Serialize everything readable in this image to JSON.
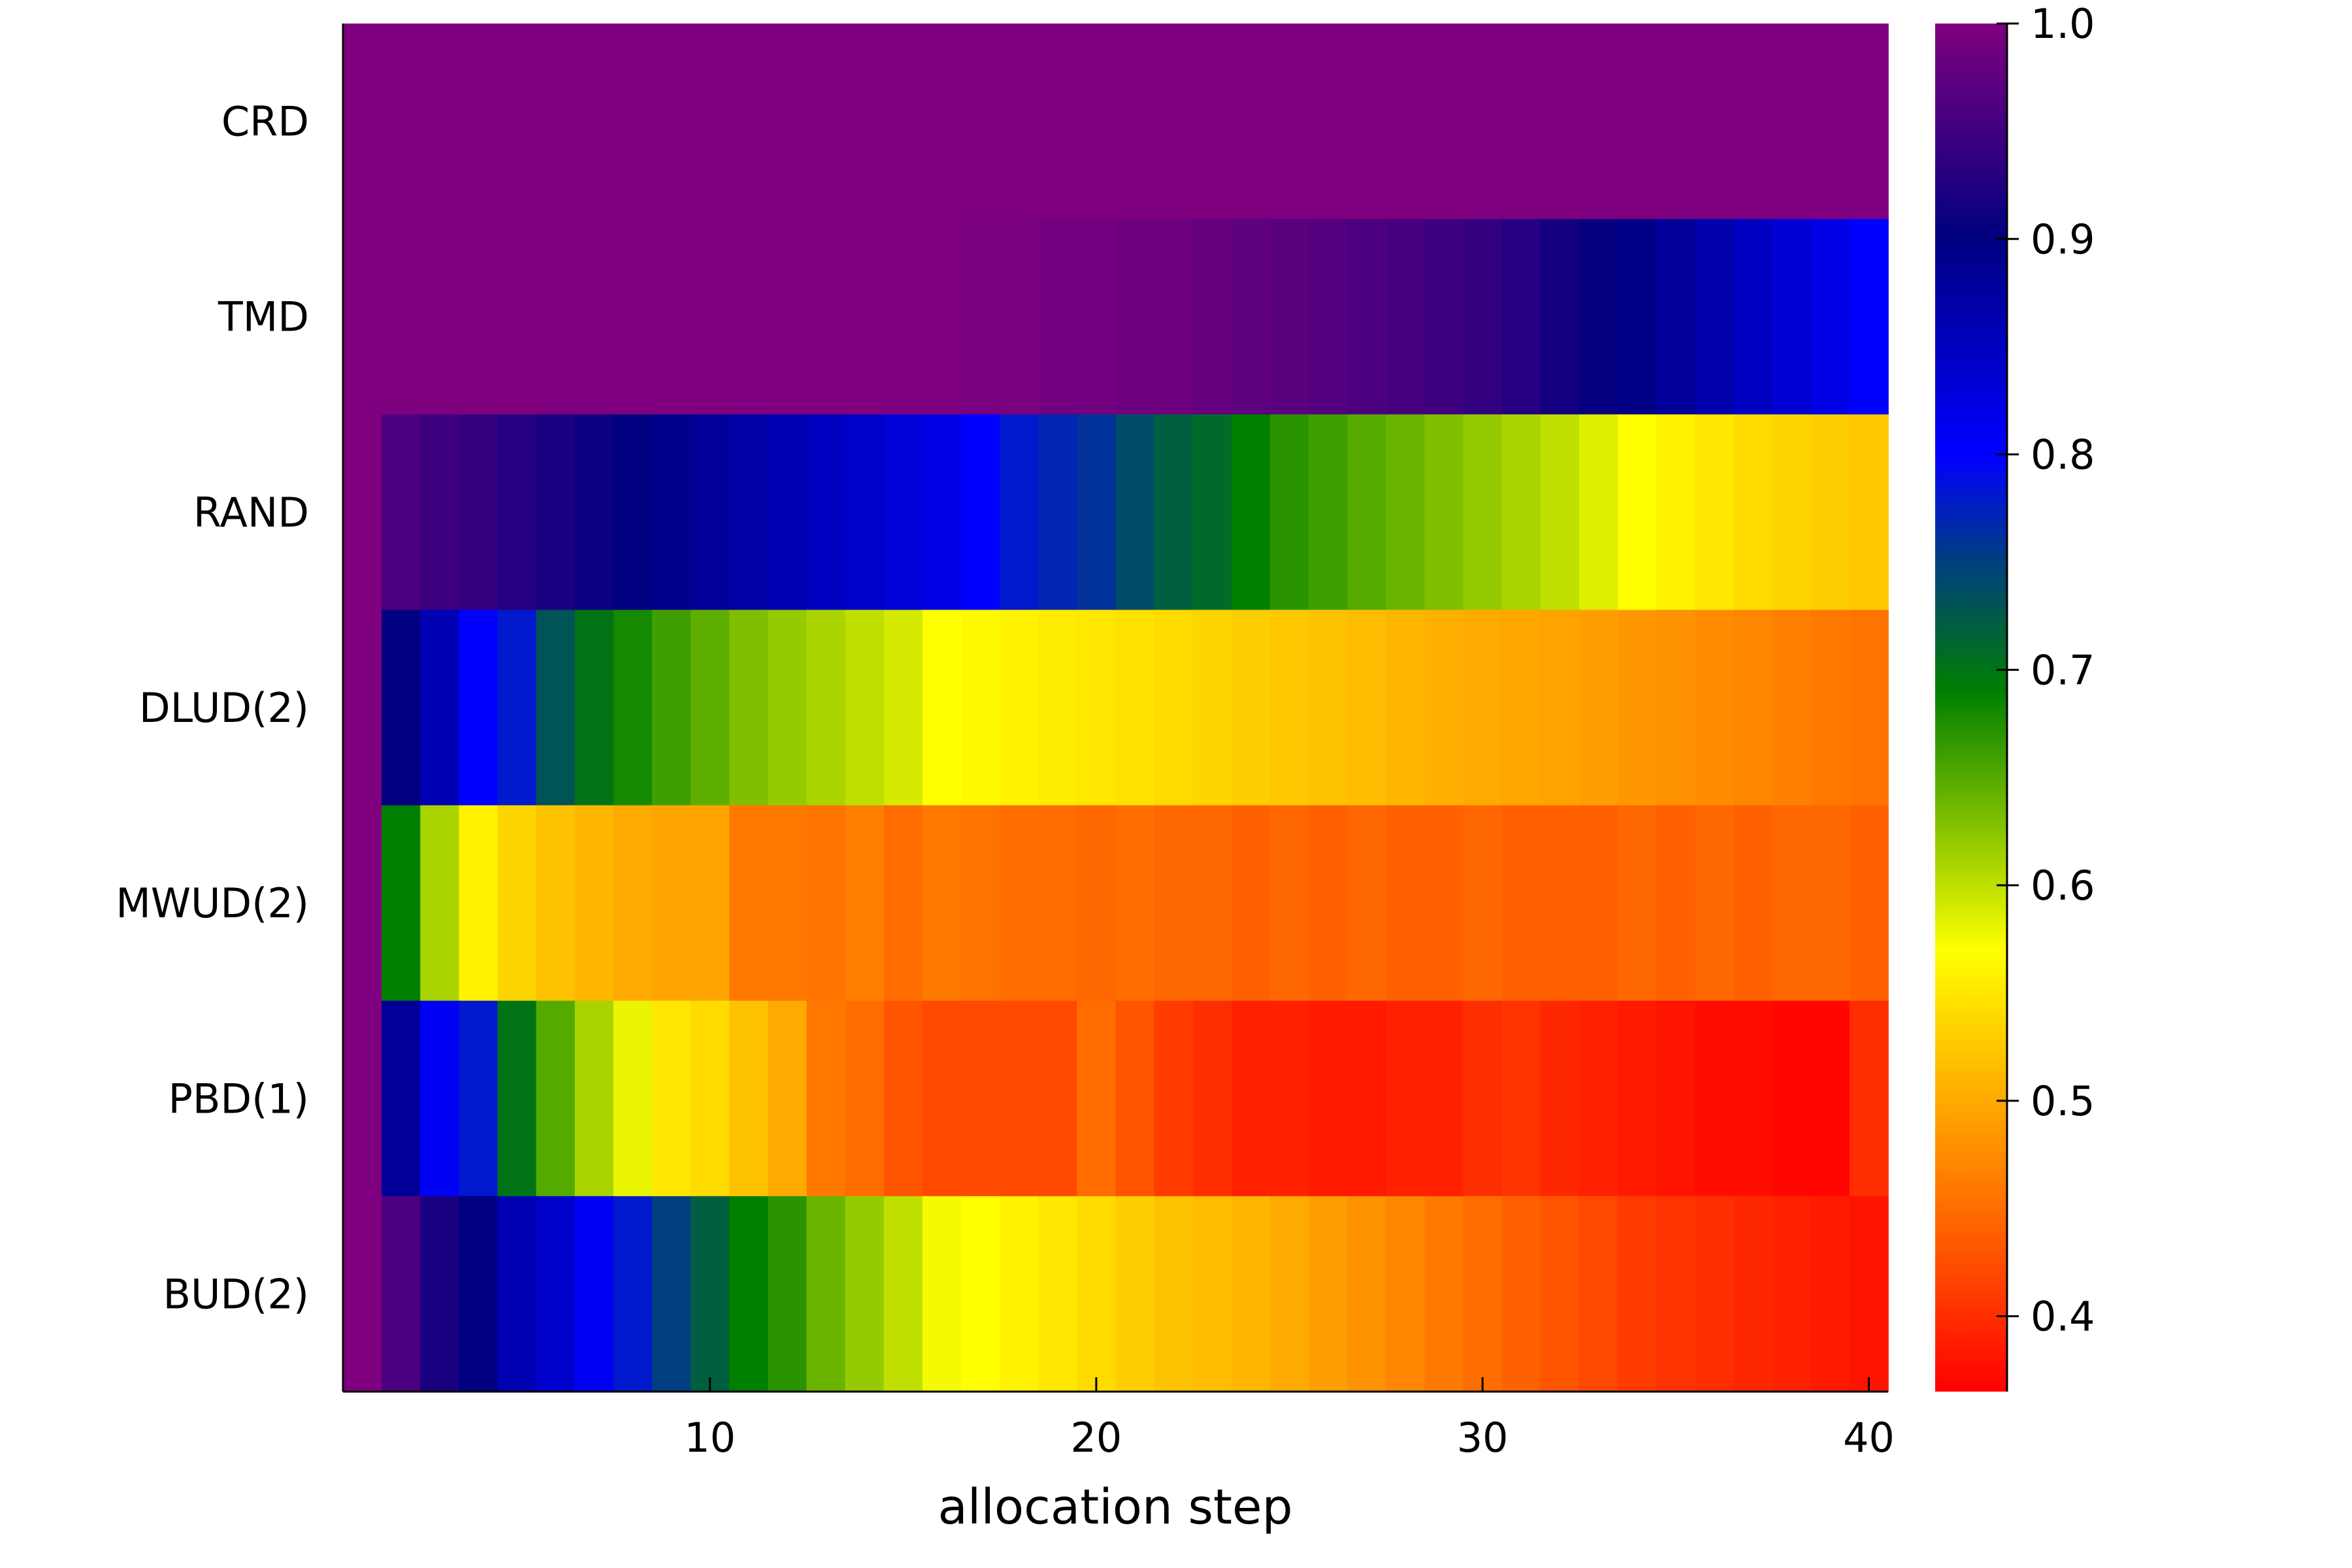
{
  "chart_data": {
    "type": "heatmap",
    "title": "",
    "xlabel": "allocation step",
    "ylabel": "",
    "xlim": [
      0.5,
      40.5
    ],
    "x_ticks": [
      10,
      20,
      30,
      40
    ],
    "rows": [
      "CRD",
      "TMD",
      "RAND",
      "DLUD(2)",
      "MWUD(2)",
      "PBD(1)",
      "BUD(2)"
    ],
    "colorbar": {
      "range": [
        0.365,
        1.0
      ],
      "ticks": [
        "1.0",
        "0.9",
        "0.8",
        "0.7",
        "0.6",
        "0.5",
        "0.4"
      ],
      "stops": [
        {
          "v": 0.365,
          "c": "#ff0000"
        },
        {
          "v": 0.43,
          "c": "#ff5500"
        },
        {
          "v": 0.5,
          "c": "#ffaa00"
        },
        {
          "v": 0.57,
          "c": "#ffff00"
        },
        {
          "v": 0.63,
          "c": "#7fbf00"
        },
        {
          "v": 0.69,
          "c": "#007f00"
        },
        {
          "v": 0.75,
          "c": "#003f7f"
        },
        {
          "v": 0.8,
          "c": "#0000ff"
        },
        {
          "v": 0.9,
          "c": "#000080"
        },
        {
          "v": 1.0,
          "c": "#7f007f"
        }
      ]
    },
    "values": [
      [
        1.0,
        1.0,
        1.0,
        1.0,
        1.0,
        1.0,
        1.0,
        1.0,
        1.0,
        1.0,
        1.0,
        1.0,
        1.0,
        1.0,
        1.0,
        1.0,
        1.0,
        1.0,
        1.0,
        1.0,
        1.0,
        1.0,
        1.0,
        1.0,
        1.0,
        1.0,
        1.0,
        1.0,
        1.0,
        1.0,
        1.0,
        1.0,
        1.0,
        1.0,
        1.0,
        1.0,
        1.0,
        1.0,
        1.0,
        1.0
      ],
      [
        1.0,
        1.0,
        1.0,
        1.0,
        1.0,
        1.0,
        1.0,
        1.0,
        1.0,
        1.0,
        1.0,
        1.0,
        1.0,
        1.0,
        1.0,
        1.0,
        0.995,
        0.995,
        0.99,
        0.99,
        0.985,
        0.985,
        0.98,
        0.975,
        0.97,
        0.965,
        0.96,
        0.955,
        0.95,
        0.94,
        0.93,
        0.915,
        0.905,
        0.895,
        0.88,
        0.865,
        0.85,
        0.835,
        0.82,
        0.8
      ],
      [
        1.0,
        0.96,
        0.95,
        0.94,
        0.93,
        0.92,
        0.91,
        0.9,
        0.89,
        0.88,
        0.87,
        0.86,
        0.85,
        0.84,
        0.83,
        0.82,
        0.8,
        0.78,
        0.77,
        0.76,
        0.74,
        0.72,
        0.71,
        0.69,
        0.67,
        0.66,
        0.65,
        0.64,
        0.63,
        0.62,
        0.61,
        0.6,
        0.585,
        0.57,
        0.56,
        0.55,
        0.54,
        0.535,
        0.53,
        0.525
      ],
      [
        1.0,
        0.9,
        0.86,
        0.8,
        0.78,
        0.73,
        0.7,
        0.68,
        0.66,
        0.645,
        0.63,
        0.62,
        0.61,
        0.6,
        0.59,
        0.57,
        0.565,
        0.56,
        0.555,
        0.55,
        0.545,
        0.54,
        0.535,
        0.53,
        0.525,
        0.52,
        0.515,
        0.51,
        0.505,
        0.5,
        0.497,
        0.494,
        0.49,
        0.485,
        0.48,
        0.475,
        0.47,
        0.465,
        0.46,
        0.455
      ],
      [
        1.0,
        0.69,
        0.61,
        0.56,
        0.535,
        0.52,
        0.51,
        0.5,
        0.495,
        0.495,
        0.46,
        0.46,
        0.455,
        0.465,
        0.45,
        0.46,
        0.455,
        0.45,
        0.45,
        0.445,
        0.45,
        0.445,
        0.445,
        0.44,
        0.445,
        0.44,
        0.445,
        0.44,
        0.44,
        0.445,
        0.44,
        0.44,
        0.44,
        0.445,
        0.44,
        0.445,
        0.44,
        0.445,
        0.445,
        0.44
      ],
      [
        1.0,
        0.88,
        0.81,
        0.78,
        0.7,
        0.65,
        0.61,
        0.58,
        0.55,
        0.54,
        0.52,
        0.5,
        0.46,
        0.45,
        0.43,
        0.42,
        0.42,
        0.42,
        0.42,
        0.45,
        0.43,
        0.41,
        0.4,
        0.39,
        0.39,
        0.385,
        0.385,
        0.39,
        0.39,
        0.4,
        0.405,
        0.395,
        0.39,
        0.385,
        0.38,
        0.375,
        0.375,
        0.37,
        0.37,
        0.4
      ],
      [
        1.0,
        0.96,
        0.92,
        0.9,
        0.86,
        0.84,
        0.81,
        0.78,
        0.75,
        0.72,
        0.69,
        0.67,
        0.64,
        0.62,
        0.6,
        0.575,
        0.57,
        0.56,
        0.55,
        0.54,
        0.53,
        0.52,
        0.515,
        0.51,
        0.5,
        0.49,
        0.48,
        0.47,
        0.46,
        0.45,
        0.44,
        0.43,
        0.42,
        0.41,
        0.405,
        0.4,
        0.395,
        0.39,
        0.385,
        0.38
      ]
    ]
  }
}
